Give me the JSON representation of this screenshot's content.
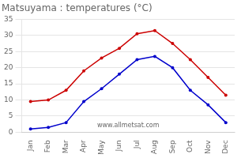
{
  "chart_data": {
    "type": "line",
    "title": "Matsuyama : temperatures (°C)",
    "categories": [
      "Jan",
      "Feb",
      "Mar",
      "Apr",
      "May",
      "Jun",
      "Jul",
      "Aug",
      "Sep",
      "Oct",
      "Nov",
      "Dec"
    ],
    "series": [
      {
        "color": "#cc0000",
        "values": [
          9.5,
          10.0,
          13.0,
          19.0,
          23.0,
          26.0,
          30.5,
          31.5,
          27.5,
          22.5,
          17.0,
          11.5
        ]
      },
      {
        "color": "#0000cc",
        "values": [
          1.0,
          1.5,
          3.0,
          9.5,
          13.5,
          18.0,
          22.5,
          23.5,
          20.0,
          13.0,
          8.5,
          3.0
        ]
      }
    ],
    "marker": "circle",
    "ylim": [
      0,
      35
    ],
    "yticks": [
      0,
      5,
      10,
      15,
      20,
      25,
      30,
      35
    ],
    "grid": "y",
    "annotations": [
      "www.allmetsat.com"
    ]
  }
}
